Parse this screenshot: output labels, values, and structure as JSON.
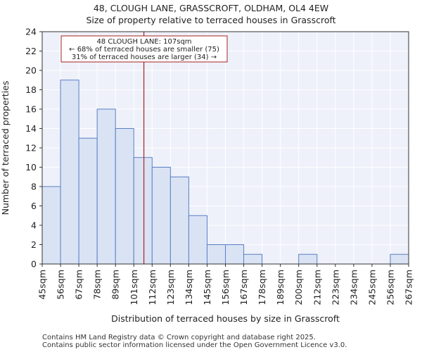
{
  "title_line1": "48, CLOUGH LANE, GRASSCROFT, OLDHAM, OL4 4EW",
  "title_line2": "Size of property relative to terraced houses in Grasscroft",
  "footer_line1": "Contains HM Land Registry data © Crown copyright and database right 2025.",
  "footer_line2": "Contains public sector information licensed under the Open Government Licence v3.0.",
  "colors": {
    "bar_fill": "#dae3f4",
    "bar_edge": "#5a7fc4",
    "marker": "#aa2222",
    "plot_bg": "#eef1fa",
    "grid": "#ffffff"
  },
  "chart_data": {
    "type": "bar",
    "title": "Size of property relative to terraced houses in Grasscroft",
    "xlabel": "Distribution of terraced houses by size in Grasscroft",
    "ylabel": "Number of terraced properties",
    "bin_edges": [
      "45sqm",
      "56sqm",
      "67sqm",
      "78sqm",
      "89sqm",
      "101sqm",
      "112sqm",
      "123sqm",
      "134sqm",
      "145sqm",
      "156sqm",
      "167sqm",
      "178sqm",
      "189sqm",
      "200sqm",
      "212sqm",
      "223sqm",
      "234sqm",
      "245sqm",
      "256sqm",
      "267sqm"
    ],
    "values": [
      8,
      19,
      13,
      16,
      14,
      11,
      10,
      9,
      5,
      2,
      2,
      1,
      0,
      0,
      1,
      0,
      0,
      0,
      0,
      1
    ],
    "ylim": [
      0,
      24
    ],
    "yticks": [
      0,
      2,
      4,
      6,
      8,
      10,
      12,
      14,
      16,
      18,
      20,
      22,
      24
    ],
    "marker_value": 107,
    "marker_bin_position": 5.55,
    "annotation": {
      "line1": "48 CLOUGH LANE: 107sqm",
      "line2": "← 68% of terraced houses are smaller (75)",
      "line3": "31% of terraced houses are larger (34) →"
    }
  }
}
